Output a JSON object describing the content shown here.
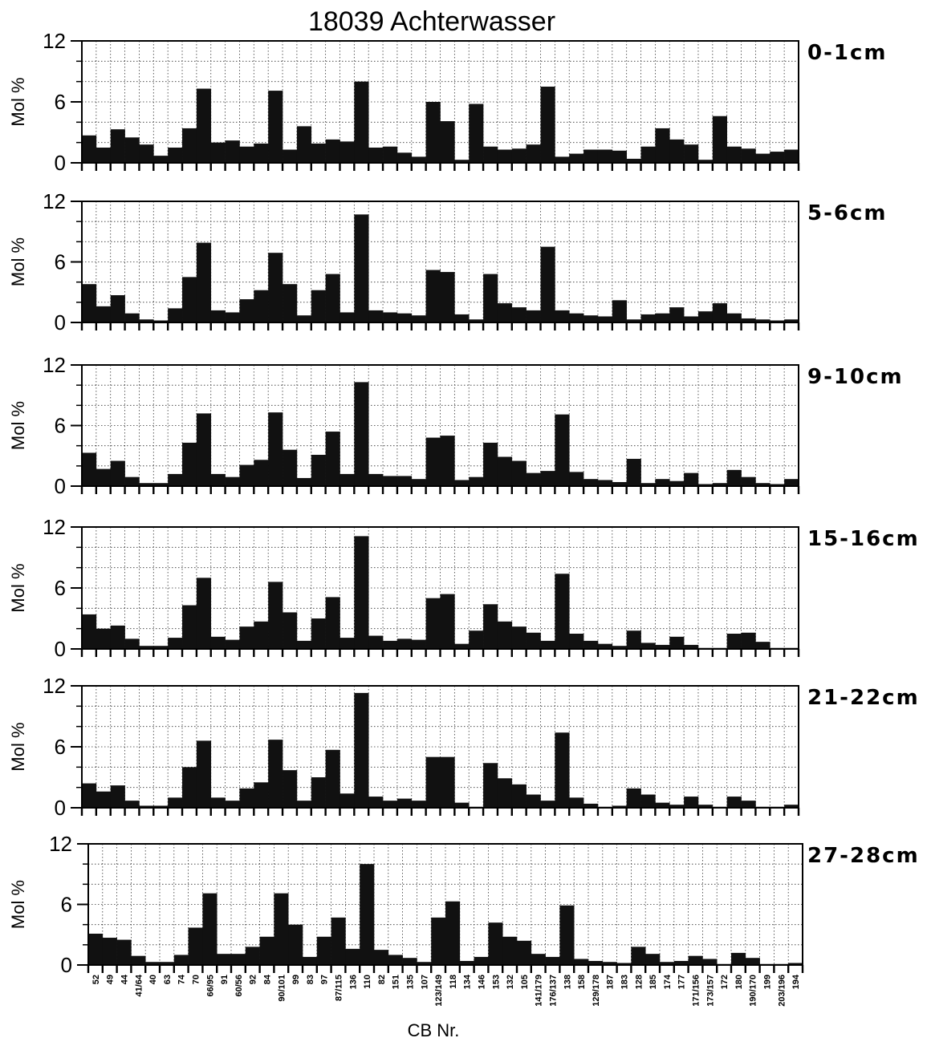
{
  "chart_data": {
    "type": "bar",
    "title": "18039 Achterwasser",
    "xlabel": "CB Nr.",
    "ylabel": "Mol %",
    "ylim": [
      0,
      12
    ],
    "yticks": [
      0,
      6,
      12
    ],
    "grid": true,
    "tick_labels": [
      "52",
      "49",
      "44",
      "41/64",
      "40",
      "63",
      "74",
      "70",
      "66/95",
      "91",
      "60/56",
      "92",
      "84",
      "90/101",
      "99",
      "83",
      "97",
      "87/115",
      "136",
      "110",
      "82",
      "151",
      "135",
      "107",
      "123/149",
      "118",
      "134",
      "146",
      "153",
      "132",
      "105",
      "141/179",
      "176/137",
      "138",
      "158",
      "129/178",
      "187",
      "183",
      "128",
      "185",
      "174",
      "177",
      "171/156",
      "173/157",
      "172",
      "180",
      "190/170",
      "199",
      "203/196",
      "194"
    ],
    "panels": [
      {
        "depth": "0-1cm",
        "values": [
          2.7,
          1.5,
          3.3,
          2.5,
          1.8,
          0.7,
          1.5,
          3.4,
          7.3,
          2.0,
          2.2,
          1.6,
          1.9,
          7.1,
          1.3,
          3.6,
          1.9,
          2.3,
          2.1,
          8.0,
          1.5,
          1.6,
          1.0,
          0.6,
          6.0,
          4.1,
          0.3,
          5.8,
          1.6,
          1.3,
          1.4,
          1.8,
          7.5,
          0.6,
          0.9,
          1.3,
          1.3,
          1.2,
          0.4,
          1.6,
          3.4,
          2.3,
          1.8,
          0.3,
          4.6,
          1.6,
          1.4,
          0.9,
          1.1,
          1.3
        ]
      },
      {
        "depth": "5-6cm",
        "values": [
          3.8,
          1.6,
          2.7,
          0.9,
          0.3,
          0.2,
          1.4,
          4.5,
          7.9,
          1.2,
          1.0,
          2.3,
          3.2,
          6.9,
          3.8,
          0.7,
          3.2,
          4.8,
          1.0,
          10.7,
          1.2,
          1.0,
          0.9,
          0.7,
          5.2,
          5.0,
          0.8,
          0.3,
          4.8,
          1.9,
          1.5,
          1.2,
          7.5,
          1.2,
          0.9,
          0.7,
          0.6,
          2.2,
          0.3,
          0.8,
          0.9,
          1.5,
          0.6,
          1.1,
          1.9,
          0.9,
          0.4,
          0.3,
          0.2,
          0.3
        ]
      },
      {
        "depth": "9-10cm",
        "values": [
          3.3,
          1.7,
          2.5,
          0.9,
          0.3,
          0.3,
          1.2,
          4.3,
          7.2,
          1.2,
          0.9,
          2.1,
          2.6,
          7.3,
          3.6,
          0.8,
          3.1,
          5.4,
          1.2,
          10.3,
          1.2,
          1.0,
          1.0,
          0.7,
          4.8,
          5.0,
          0.6,
          0.9,
          4.3,
          2.9,
          2.5,
          1.3,
          1.5,
          7.1,
          1.4,
          0.7,
          0.6,
          0.4,
          2.7,
          0.3,
          0.7,
          0.5,
          1.3,
          0.2,
          0.3,
          1.6,
          0.9,
          0.3,
          0.2,
          0.7
        ]
      },
      {
        "depth": "15-16cm",
        "values": [
          3.4,
          2.0,
          2.3,
          1.0,
          0.3,
          0.3,
          1.1,
          4.3,
          7.0,
          1.2,
          0.9,
          2.2,
          2.7,
          6.6,
          3.6,
          0.8,
          3.0,
          5.1,
          1.1,
          11.1,
          1.3,
          0.8,
          1.0,
          0.9,
          5.0,
          5.4,
          0.5,
          1.8,
          4.4,
          2.7,
          2.2,
          1.6,
          0.8,
          7.4,
          1.5,
          0.8,
          0.5,
          0.3,
          1.8,
          0.6,
          0.4,
          1.2,
          0.4,
          0.1,
          0.1,
          1.5,
          1.6,
          0.7,
          0.1,
          0.1
        ]
      },
      {
        "depth": "21-22cm",
        "values": [
          2.4,
          1.6,
          2.2,
          0.7,
          0.2,
          0.2,
          1.0,
          4.0,
          6.6,
          1.0,
          0.7,
          1.9,
          2.5,
          6.7,
          3.7,
          0.7,
          3.0,
          5.7,
          1.4,
          11.3,
          1.1,
          0.7,
          0.9,
          0.7,
          5.0,
          5.0,
          0.5,
          0.1,
          4.4,
          2.9,
          2.3,
          1.3,
          0.7,
          7.4,
          1.0,
          0.4,
          0.1,
          0.2,
          1.9,
          1.3,
          0.5,
          0.3,
          1.1,
          0.3,
          0.1,
          1.1,
          0.7,
          0.1,
          0.1,
          0.3
        ]
      },
      {
        "depth": "27-28cm",
        "values": [
          3.1,
          2.7,
          2.5,
          0.9,
          0.3,
          0.3,
          1.0,
          3.7,
          7.1,
          1.1,
          1.1,
          1.8,
          2.8,
          7.1,
          4.0,
          0.8,
          2.8,
          4.7,
          1.6,
          10.0,
          1.5,
          1.0,
          0.7,
          0.3,
          4.7,
          6.3,
          0.4,
          0.8,
          4.2,
          2.8,
          2.4,
          1.1,
          0.8,
          5.9,
          0.6,
          0.4,
          0.3,
          0.2,
          1.8,
          1.1,
          0.3,
          0.4,
          0.9,
          0.6,
          0.1,
          1.2,
          0.7,
          0.1,
          0.1,
          0.2
        ]
      }
    ]
  }
}
